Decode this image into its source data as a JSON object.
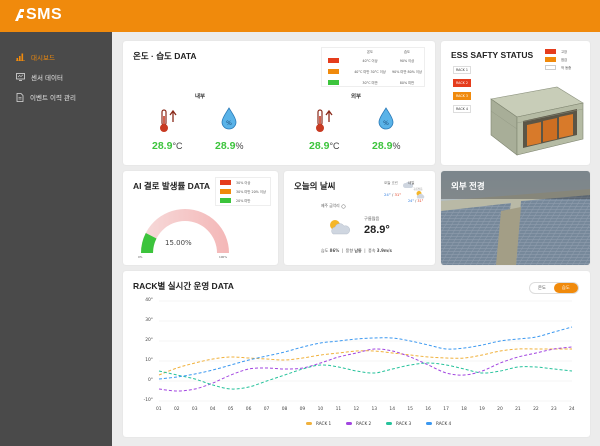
{
  "app": {
    "logo": "SMS"
  },
  "sidebar": {
    "items": [
      {
        "label": "대시보드",
        "icon": "bar-chart-icon",
        "active": true
      },
      {
        "label": "센서 데이터",
        "icon": "monitor-icon",
        "active": false
      },
      {
        "label": "이벤트 이력 관리",
        "icon": "document-icon",
        "active": false
      }
    ]
  },
  "thermo": {
    "title": "온도 · 습도 DATA",
    "legend_header": [
      "온도",
      "습도"
    ],
    "legend": [
      {
        "color": "#e53c1c",
        "temp": "40°C 이상",
        "hum": "90% 이상"
      },
      {
        "color": "#f08a0c",
        "temp": "40°C 미만 30°C 이상",
        "hum": "90% 미만 80% 이상"
      },
      {
        "color": "#3cc43c",
        "temp": "30°C 미만",
        "hum": "80% 미만"
      }
    ],
    "inside": {
      "label": "내부",
      "temp": "28.9",
      "temp_unit": "°C",
      "hum": "28.9",
      "hum_unit": "%"
    },
    "outside": {
      "label": "외부",
      "temp": "28.9",
      "temp_unit": "°C",
      "hum": "28.9",
      "hum_unit": "%"
    }
  },
  "ess": {
    "title": "ESS SAFTY STATUS",
    "legend": [
      {
        "color": "#e53c1c",
        "label": "고장"
      },
      {
        "color": "#f08a0c",
        "label": "점검"
      },
      {
        "color": "#ffffff",
        "label": "작 동중"
      }
    ],
    "racks": [
      {
        "label": "RACK 1",
        "color": "#ffffff",
        "text": "#333"
      },
      {
        "label": "RACK 2",
        "color": "#e53c1c",
        "text": "#fff"
      },
      {
        "label": "RACK 3",
        "color": "#f08a0c",
        "text": "#fff"
      },
      {
        "label": "RACK 4",
        "color": "#ffffff",
        "text": "#333"
      }
    ]
  },
  "ai": {
    "title": "AI 결로 발생률 DATA",
    "legend": [
      {
        "color": "#e53c1c",
        "label": "30% 이상"
      },
      {
        "color": "#f08a0c",
        "label": "30% 미만 20% 이상"
      },
      {
        "color": "#3cc43c",
        "label": "20% 미만"
      }
    ],
    "rate": 0.15,
    "rate_label": "15.00%",
    "min_label": "0%",
    "max_label": "100%"
  },
  "weather": {
    "title": "오늘의 날씨",
    "location": "제주 금악리",
    "condition": "구름많음",
    "temp": "28.9°",
    "humidity_label": "습도",
    "humidity": "86%",
    "wind_label": "풍향",
    "wind": "남동",
    "speed_label": "풍속",
    "speed": "3.9m/s",
    "today_label": "오늘",
    "today_desc": "흐린",
    "today_low": "24°",
    "today_high": "31°",
    "tomorrow_label": "내일",
    "tomorrow_desc": "구름많음",
    "tomorrow_low": "24°",
    "tomorrow_high": "31°"
  },
  "exterior": {
    "title": "외부 전경"
  },
  "rack_chart": {
    "title": "RACK별 실시간 운영 DATA",
    "toggle": [
      {
        "label": "온도",
        "active": false
      },
      {
        "label": "습도",
        "active": true
      }
    ]
  },
  "chart_data": {
    "type": "line",
    "title": "RACK별 실시간 운영 DATA",
    "categories": [
      "01",
      "02",
      "03",
      "04",
      "05",
      "06",
      "07",
      "08",
      "09",
      "10",
      "11",
      "12",
      "13",
      "14",
      "15",
      "16",
      "17",
      "18",
      "19",
      "20",
      "21",
      "22",
      "23",
      "24"
    ],
    "ylim": [
      -10,
      40
    ],
    "yticks": [
      "40°",
      "30°",
      "20°",
      "10°",
      "0°",
      "-10°"
    ],
    "legend_position": "bottom",
    "series": [
      {
        "name": "RACK 1",
        "color": "#f0b13c",
        "values": [
          3,
          6.5,
          9,
          11,
          12,
          11.5,
          11,
          10.5,
          11.5,
          13,
          14,
          15,
          15,
          14,
          13,
          12,
          11.5,
          11.5,
          13,
          15,
          16,
          16,
          16,
          16
        ]
      },
      {
        "name": "RACK 2",
        "color": "#a246e0",
        "values": [
          -4,
          -5,
          -4,
          -1,
          3,
          6,
          6.5,
          6,
          6.5,
          9,
          12,
          14,
          16,
          15,
          12,
          8,
          4,
          3,
          5,
          9,
          12,
          14,
          16,
          17
        ]
      },
      {
        "name": "RACK 3",
        "color": "#26c29b",
        "values": [
          5,
          3,
          1,
          -2,
          -4,
          -3,
          0,
          3,
          6,
          8,
          7,
          5,
          4,
          6,
          8,
          9,
          8,
          6,
          4,
          5,
          7,
          7,
          6,
          5
        ]
      },
      {
        "name": "RACK 4",
        "color": "#3b98f0",
        "values": [
          1,
          2,
          3.5,
          5.5,
          8,
          10.5,
          12.5,
          14.5,
          17,
          19,
          20,
          21,
          21.5,
          21.5,
          20,
          18,
          16,
          16.5,
          18,
          20,
          21,
          22,
          24.5,
          27
        ]
      }
    ]
  }
}
